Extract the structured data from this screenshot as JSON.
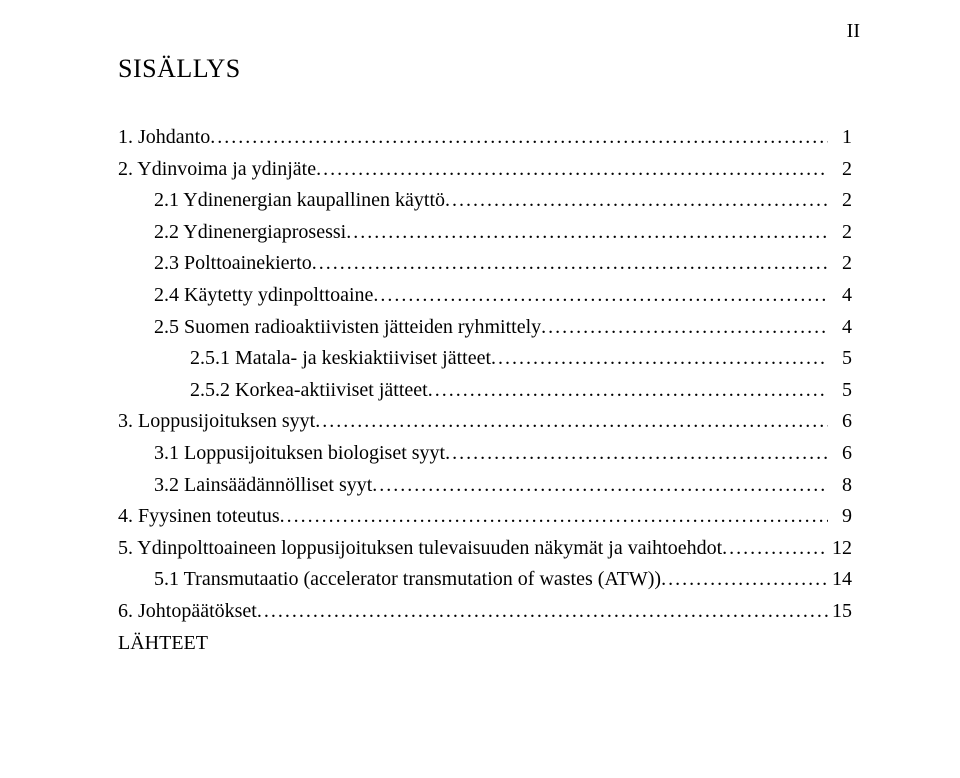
{
  "page_number": "II",
  "title": "SISÄLLYS",
  "toc": [
    {
      "label": "1. Johdanto",
      "page": "1",
      "indent": 0
    },
    {
      "label": "2. Ydinvoima ja ydinjäte",
      "page": "2",
      "indent": 0
    },
    {
      "label": "2.1 Ydinenergian kaupallinen käyttö",
      "page": "2",
      "indent": 1
    },
    {
      "label": "2.2 Ydinenergiaprosessi",
      "page": "2",
      "indent": 1
    },
    {
      "label": "2.3 Polttoainekierto",
      "page": "2",
      "indent": 1
    },
    {
      "label": "2.4 Käytetty ydinpolttoaine",
      "page": "4",
      "indent": 1
    },
    {
      "label": "2.5 Suomen radioaktiivisten jätteiden ryhmittely",
      "page": "4",
      "indent": 1
    },
    {
      "label": "2.5.1 Matala- ja keskiaktiiviset jätteet",
      "page": "5",
      "indent": 2
    },
    {
      "label": "2.5.2 Korkea-aktiiviset jätteet",
      "page": "5",
      "indent": 2
    },
    {
      "label": "3. Loppusijoituksen syyt",
      "page": "6",
      "indent": 0
    },
    {
      "label": "3.1 Loppusijoituksen biologiset syyt",
      "page": "6",
      "indent": 1
    },
    {
      "label": "3.2 Lainsäädännölliset syyt",
      "page": "8",
      "indent": 1
    },
    {
      "label": "4. Fyysinen toteutus",
      "page": "9",
      "indent": 0
    },
    {
      "label": "5. Ydinpolttoaineen loppusijoituksen tulevaisuuden näkymät ja vaihtoehdot",
      "page": "12",
      "indent": 0
    },
    {
      "label": "5.1 Transmutaatio (accelerator transmutation of wastes (ATW))",
      "page": "14",
      "indent": 1
    },
    {
      "label": "6. Johtopäätökset",
      "page": "15",
      "indent": 0
    }
  ],
  "trailing": "LÄHTEET"
}
